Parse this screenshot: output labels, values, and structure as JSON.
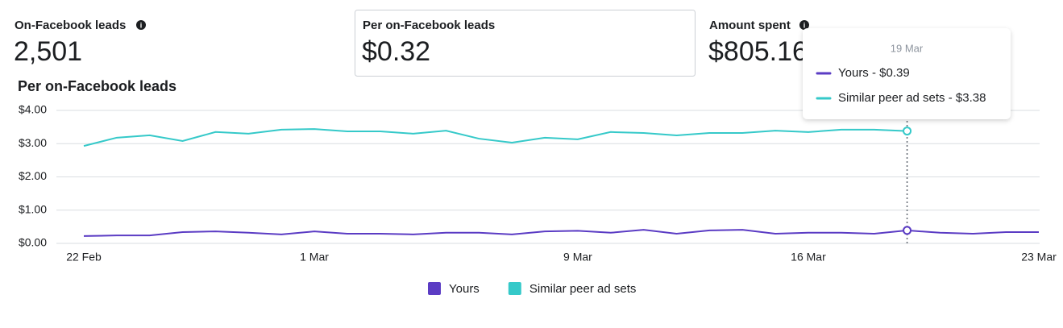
{
  "metrics": [
    {
      "label": "On-Facebook leads",
      "value": "2,501"
    },
    {
      "label": "Per on-Facebook leads",
      "value": "$0.32"
    },
    {
      "label": "Amount spent",
      "value": "$805.16"
    }
  ],
  "chart_data": {
    "type": "line",
    "title": "Per on-Facebook leads",
    "categories": [
      "22 Feb",
      null,
      null,
      null,
      null,
      null,
      null,
      "1 Mar",
      null,
      null,
      null,
      null,
      null,
      null,
      null,
      "9 Mar",
      null,
      null,
      null,
      null,
      null,
      null,
      "16 Mar",
      null,
      null,
      null,
      null,
      null,
      null,
      "23 Mar"
    ],
    "series": [
      {
        "name": "Yours",
        "color": "#5b3cc4",
        "values": [
          0.22,
          0.24,
          0.24,
          0.34,
          0.36,
          0.32,
          0.27,
          0.36,
          0.29,
          0.29,
          0.27,
          0.32,
          0.32,
          0.27,
          0.36,
          0.38,
          0.32,
          0.41,
          0.29,
          0.39,
          0.41,
          0.29,
          0.32,
          0.32,
          0.29,
          0.39,
          0.32,
          0.29,
          0.34,
          0.34
        ]
      },
      {
        "name": "Similar peer ad sets",
        "color": "#35c9c9",
        "values": [
          2.93,
          3.18,
          3.25,
          3.08,
          3.35,
          3.3,
          3.42,
          3.44,
          3.37,
          3.37,
          3.3,
          3.39,
          3.15,
          3.03,
          3.18,
          3.13,
          3.35,
          3.32,
          3.25,
          3.32,
          3.32,
          3.39,
          3.35,
          3.42,
          3.42,
          3.38,
          null,
          null,
          null,
          null
        ]
      }
    ],
    "ylim": [
      0,
      4
    ],
    "yticks": [
      {
        "value": 0,
        "label": "$0.00"
      },
      {
        "value": 1,
        "label": "$1.00"
      },
      {
        "value": 2,
        "label": "$2.00"
      },
      {
        "value": 3,
        "label": "$3.00"
      },
      {
        "value": 4,
        "label": "$4.00"
      }
    ],
    "grid": true,
    "legend": "bottom"
  },
  "tooltip": {
    "title": "19 Mar",
    "items": [
      "Yours - $0.39",
      "Similar peer ad sets - $3.38"
    ]
  }
}
